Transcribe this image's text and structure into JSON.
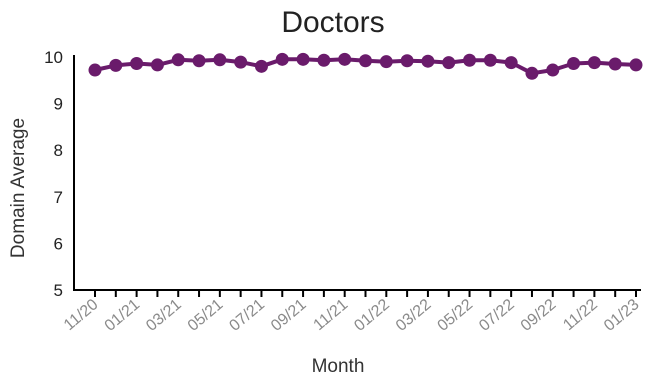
{
  "chart_data": {
    "type": "line",
    "title": "Doctors",
    "xlabel": "Month",
    "ylabel": "Domain Average",
    "ylim": [
      5,
      10
    ],
    "yticks": [
      5,
      6,
      7,
      8,
      9,
      10
    ],
    "grid": false,
    "legend": "none",
    "color": "#6a1b6b",
    "x": [
      "11/20",
      "12/20",
      "01/21",
      "02/21",
      "03/21",
      "04/21",
      "05/21",
      "06/21",
      "07/21",
      "08/21",
      "09/21",
      "10/21",
      "11/21",
      "12/21",
      "01/22",
      "02/22",
      "03/22",
      "04/22",
      "05/22",
      "06/22",
      "07/22",
      "08/22",
      "09/22",
      "10/22",
      "11/22",
      "12/22",
      "01/23"
    ],
    "xtick_labels": [
      "11/20",
      "",
      "01/21",
      "",
      "03/21",
      "",
      "05/21",
      "",
      "07/21",
      "",
      "09/21",
      "",
      "11/21",
      "",
      "01/22",
      "",
      "03/22",
      "",
      "05/22",
      "",
      "07/22",
      "",
      "09/22",
      "",
      "11/22",
      "",
      "01/23"
    ],
    "series": [
      {
        "values": [
          9.72,
          9.82,
          9.86,
          9.83,
          9.94,
          9.92,
          9.94,
          9.89,
          9.8,
          9.95,
          9.95,
          9.93,
          9.95,
          9.92,
          9.9,
          9.92,
          9.91,
          9.88,
          9.93,
          9.93,
          9.88,
          9.65,
          9.72,
          9.86,
          9.88,
          9.85,
          9.83
        ]
      }
    ]
  }
}
